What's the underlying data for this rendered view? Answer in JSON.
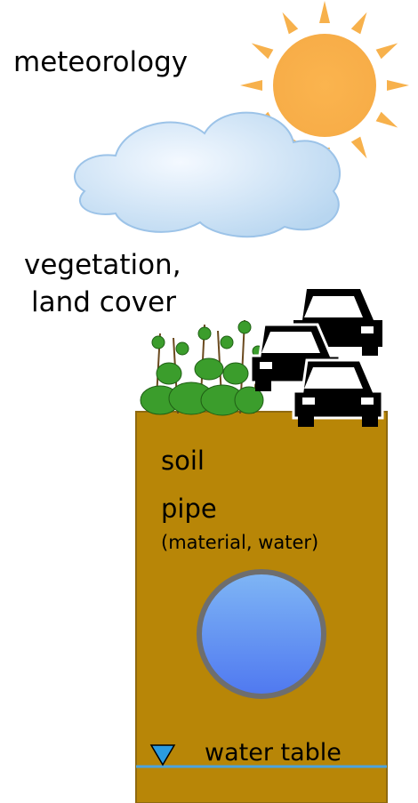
{
  "labels": {
    "meteorology": "meteorology",
    "vegetation": [
      "vegetation,",
      "land cover"
    ],
    "soil": "soil",
    "pipe": "pipe",
    "pipe_detail": "(material, water)",
    "water_table": "water table"
  }
}
